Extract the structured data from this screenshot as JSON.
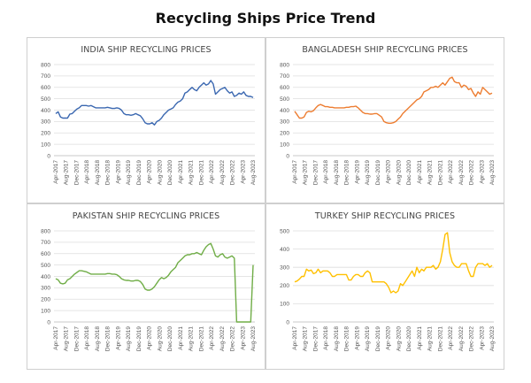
{
  "page": {
    "title": "Recycling Ships Price Trend"
  },
  "chart_data": [
    {
      "type": "line",
      "title": "INDIA SHIP RECYCLING PRICES",
      "color": "#3a67b0",
      "ylim": [
        0,
        800
      ],
      "yticks": [
        0,
        100,
        200,
        300,
        400,
        500,
        600,
        700,
        800
      ],
      "xlabels": [
        "Apr-2017",
        "Aug-2017",
        "Dec-2017",
        "Apr-2018",
        "Aug-2018",
        "Dec-2018",
        "Apr-2019",
        "Aug-2019",
        "Dec-2019",
        "Apr-2020",
        "Aug-2020",
        "Dec-2020",
        "Apr-2021",
        "Aug-2021",
        "Dec-2021",
        "Apr-2022",
        "Aug-2022",
        "Dec-2022",
        "Apr-2023",
        "Aug-2023"
      ],
      "grid": true,
      "series": [
        {
          "values": [
            370,
            385,
            340,
            330,
            330,
            330,
            365,
            370,
            390,
            410,
            420,
            440,
            440,
            440,
            435,
            440,
            430,
            420,
            420,
            420,
            420,
            420,
            425,
            420,
            415,
            415,
            420,
            415,
            400,
            370,
            360,
            360,
            355,
            360,
            370,
            360,
            350,
            325,
            290,
            280,
            280,
            290,
            270,
            300,
            310,
            330,
            360,
            380,
            400,
            410,
            420,
            450,
            470,
            480,
            500,
            550,
            560,
            580,
            600,
            580,
            570,
            600,
            620,
            640,
            620,
            630,
            660,
            630,
            540,
            560,
            580,
            590,
            600,
            570,
            550,
            560,
            520,
            530,
            550,
            540,
            560,
            530,
            520,
            520,
            510
          ]
        }
      ]
    },
    {
      "type": "line",
      "title": "BANGLADESH SHIP RECYCLING PRICES",
      "color": "#ed7d31",
      "ylim": [
        0,
        800
      ],
      "yticks": [
        0,
        100,
        200,
        300,
        400,
        500,
        600,
        700,
        800
      ],
      "xlabels": [
        "Apr-2017",
        "Aug-2017",
        "Dec-2017",
        "Apr-2018",
        "Aug-2018",
        "Dec-2018",
        "Apr-2019",
        "Aug-2019",
        "Dec-2019",
        "Apr-2020",
        "Aug-2020",
        "Dec-2020",
        "Apr-2021",
        "Aug-2021",
        "Dec-2021",
        "Apr-2022",
        "Aug-2022",
        "Dec-2022",
        "Apr-2023",
        "Aug-2023"
      ],
      "grid": true,
      "series": [
        {
          "values": [
            390,
            360,
            330,
            330,
            340,
            380,
            390,
            385,
            395,
            420,
            440,
            450,
            440,
            430,
            430,
            425,
            425,
            420,
            420,
            420,
            420,
            420,
            425,
            425,
            430,
            430,
            435,
            420,
            400,
            380,
            370,
            370,
            365,
            365,
            370,
            370,
            355,
            340,
            300,
            290,
            285,
            285,
            290,
            300,
            320,
            340,
            370,
            390,
            410,
            430,
            450,
            470,
            490,
            500,
            520,
            560,
            570,
            580,
            600,
            600,
            610,
            600,
            620,
            640,
            620,
            650,
            680,
            690,
            650,
            640,
            640,
            600,
            620,
            610,
            580,
            590,
            550,
            520,
            560,
            540,
            600,
            580,
            560,
            540,
            550
          ]
        }
      ]
    },
    {
      "type": "line",
      "title": "PAKISTAN SHIP RECYCLING PRICES",
      "color": "#70ad47",
      "ylim": [
        0,
        800
      ],
      "yticks": [
        0,
        100,
        200,
        300,
        400,
        500,
        600,
        700,
        800
      ],
      "xlabels": [
        "Apr-2017",
        "Aug-2017",
        "Dec-2017",
        "Apr-2018",
        "Aug-2018",
        "Dec-2018",
        "Apr-2019",
        "Aug-2019",
        "Dec-2019",
        "Apr-2020",
        "Aug-2020",
        "Dec-2020",
        "Apr-2021",
        "Aug-2021",
        "Dec-2021",
        "Apr-2022",
        "Aug-2022",
        "Dec-2022",
        "Apr-2023",
        "Aug-2023"
      ],
      "grid": true,
      "series": [
        {
          "values": [
            380,
            370,
            340,
            335,
            340,
            370,
            380,
            400,
            420,
            435,
            450,
            450,
            445,
            440,
            430,
            420,
            420,
            420,
            420,
            420,
            420,
            420,
            425,
            425,
            420,
            420,
            415,
            400,
            380,
            370,
            365,
            365,
            360,
            360,
            365,
            365,
            355,
            330,
            290,
            280,
            280,
            290,
            310,
            340,
            370,
            390,
            380,
            390,
            410,
            440,
            460,
            480,
            520,
            540,
            560,
            580,
            590,
            590,
            600,
            600,
            610,
            600,
            590,
            630,
            660,
            680,
            690,
            640,
            580,
            570,
            590,
            600,
            570,
            560,
            570,
            580,
            560,
            0,
            0,
            0,
            0,
            0,
            0,
            0,
            500
          ]
        }
      ]
    },
    {
      "type": "line",
      "title": "TURKEY SHIP RECYCLING PRICES",
      "color": "#ffc000",
      "ylim": [
        0,
        500
      ],
      "yticks": [
        0,
        100,
        200,
        300,
        400,
        500
      ],
      "xlabels": [
        "Apr-2017",
        "Aug-2017",
        "Dec-2017",
        "Apr-2018",
        "Aug-2018",
        "Dec-2018",
        "Apr-2019",
        "Aug-2019",
        "Dec-2019",
        "Apr-2020",
        "Aug-2020",
        "Dec-2020",
        "Apr-2021",
        "Aug-2021",
        "Dec-2021",
        "Apr-2022",
        "Aug-2022",
        "Dec-2022",
        "Apr-2023",
        "Aug-2023"
      ],
      "grid": true,
      "series": [
        {
          "values": [
            220,
            225,
            235,
            250,
            250,
            290,
            280,
            285,
            265,
            270,
            290,
            270,
            280,
            280,
            280,
            270,
            250,
            250,
            260,
            260,
            260,
            260,
            260,
            230,
            230,
            250,
            260,
            260,
            250,
            250,
            270,
            280,
            270,
            220,
            220,
            220,
            220,
            220,
            220,
            210,
            190,
            160,
            170,
            160,
            170,
            210,
            200,
            220,
            240,
            260,
            280,
            250,
            300,
            270,
            290,
            280,
            300,
            300,
            300,
            310,
            290,
            300,
            330,
            400,
            480,
            490,
            380,
            330,
            310,
            300,
            300,
            320,
            320,
            320,
            280,
            250,
            250,
            300,
            320,
            320,
            320,
            310,
            320,
            300,
            310
          ]
        }
      ]
    }
  ]
}
